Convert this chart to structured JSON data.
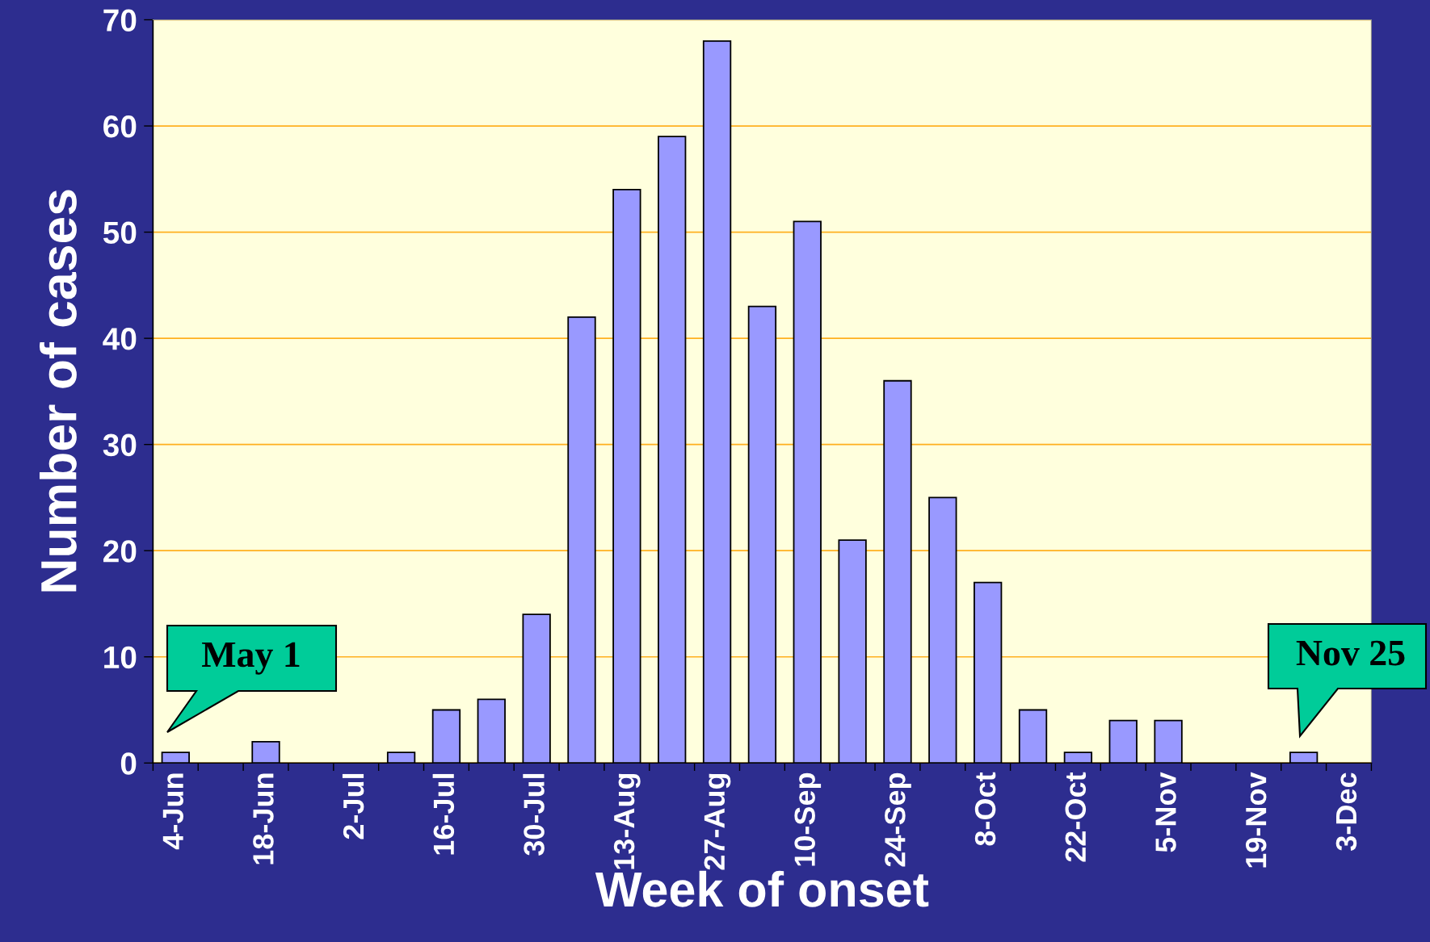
{
  "chart_data": {
    "type": "bar",
    "xlabel": "Week of onset",
    "ylabel": "Number of cases",
    "categories": [
      "4-Jun",
      null,
      "18-Jun",
      null,
      "2-Jul",
      null,
      "16-Jul",
      null,
      "30-Jul",
      null,
      "13-Aug",
      null,
      "27-Aug",
      null,
      "10-Sep",
      null,
      "24-Sep",
      null,
      "8-Oct",
      null,
      "22-Oct",
      null,
      "5-Nov",
      null,
      "19-Nov",
      null,
      "3-Dec"
    ],
    "values": [
      1,
      0,
      2,
      0,
      0,
      1,
      5,
      6,
      14,
      42,
      54,
      59,
      68,
      43,
      51,
      21,
      36,
      25,
      17,
      5,
      1,
      4,
      4,
      0,
      0,
      1,
      0
    ],
    "color": "#9999ff",
    "ylim": [
      0,
      70
    ],
    "yticks": [
      0,
      10,
      20,
      30,
      40,
      50,
      60,
      70
    ],
    "grid": "y",
    "annotations": [
      "May 1",
      "Nov 25"
    ]
  }
}
